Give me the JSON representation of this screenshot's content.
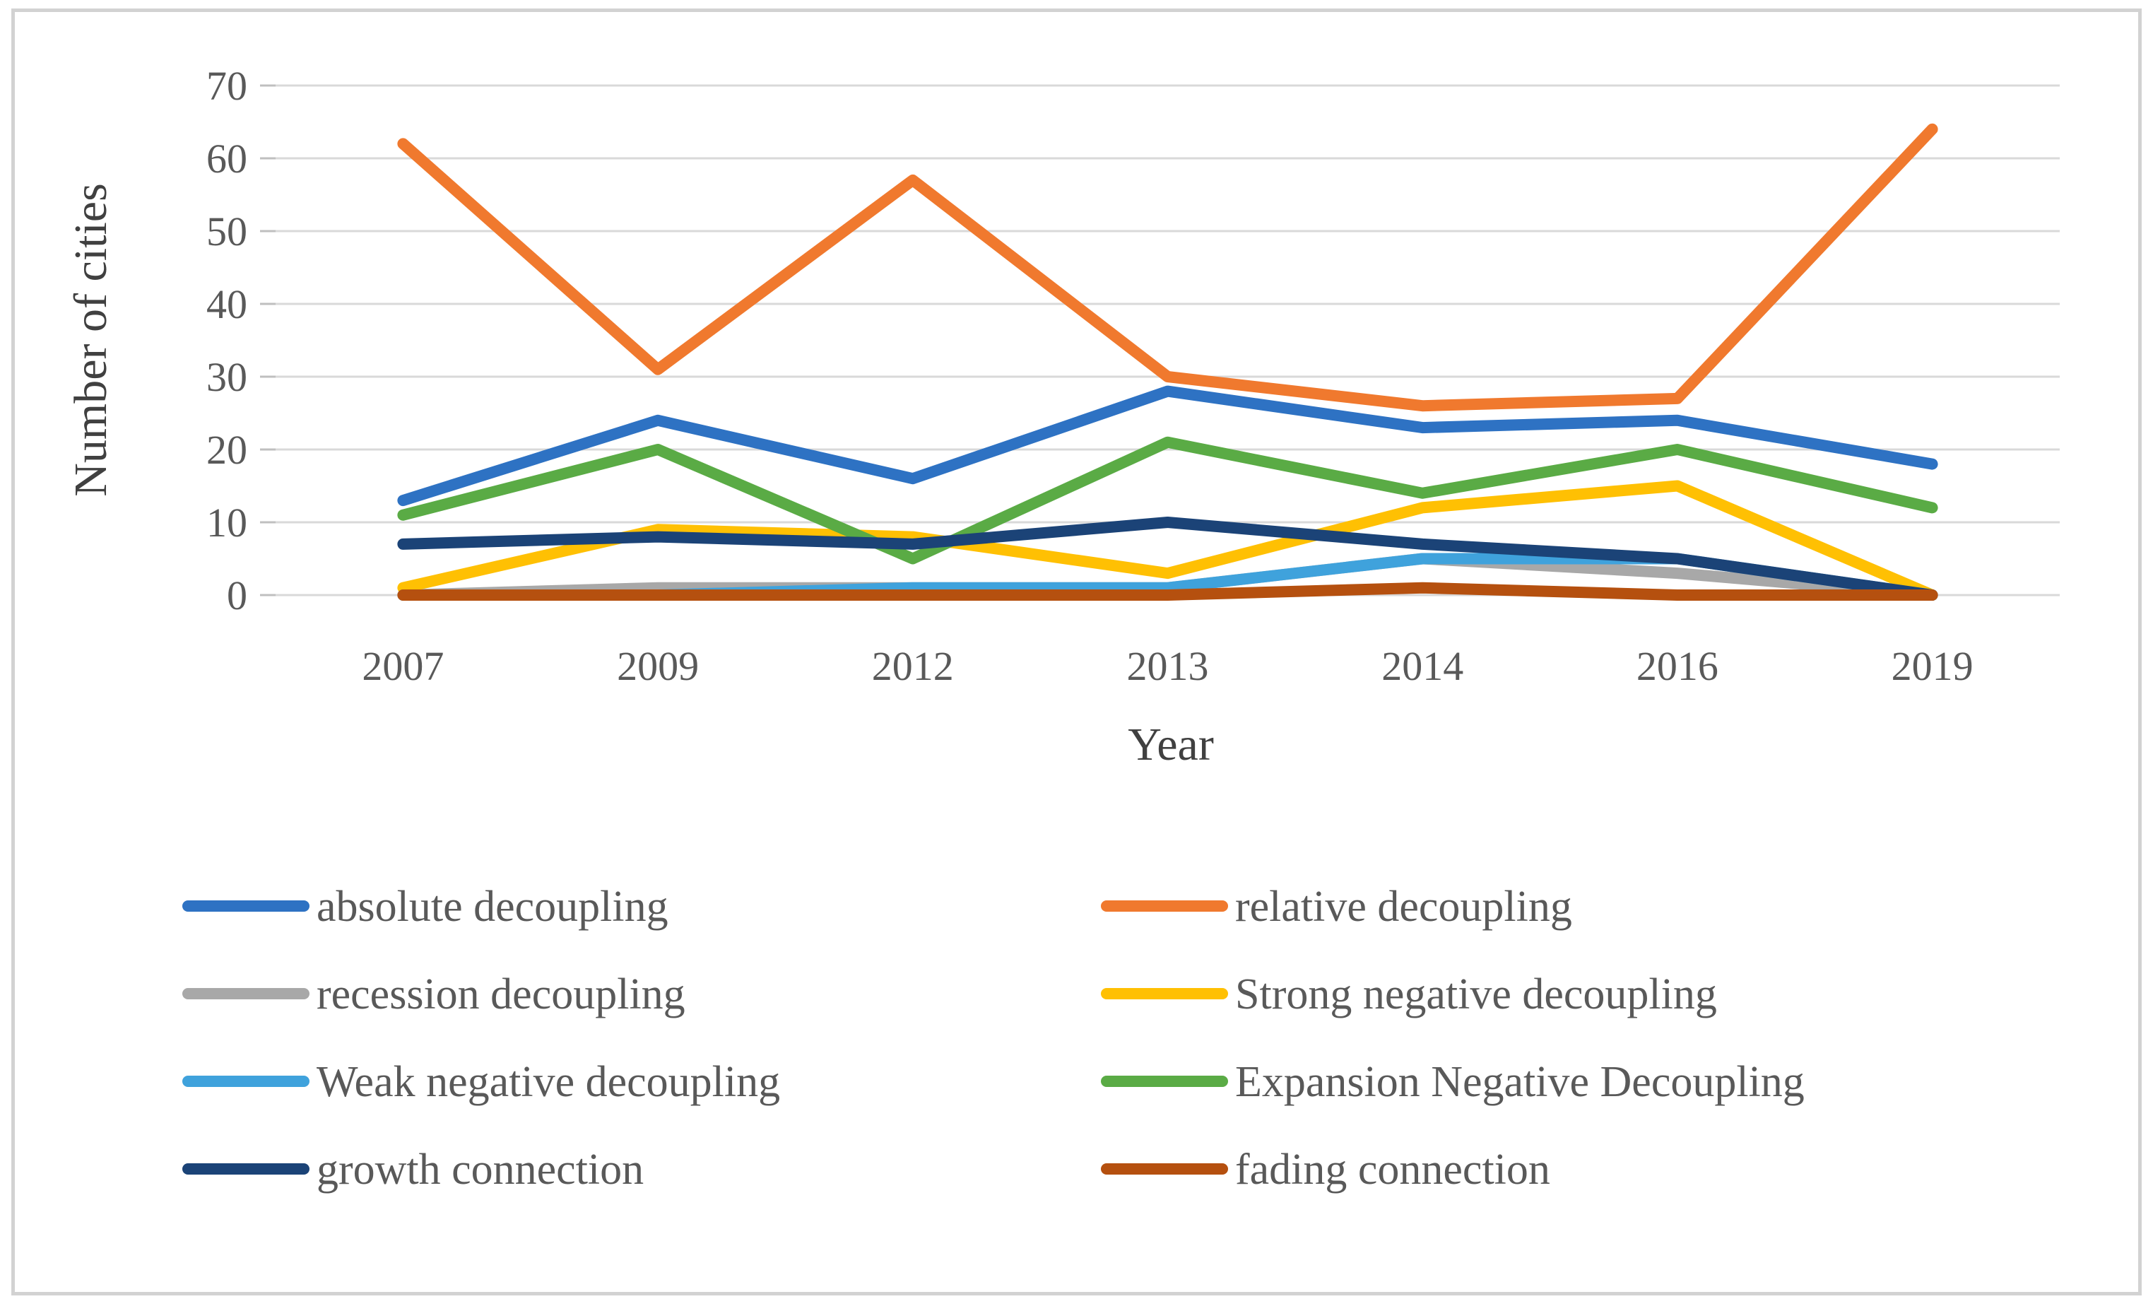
{
  "chart_data": {
    "type": "line",
    "title": "",
    "xlabel": "Year",
    "ylabel": "Number of cities",
    "categories": [
      "2007",
      "2009",
      "2012",
      "2013",
      "2014",
      "2016",
      "2019"
    ],
    "ylim": [
      0,
      70
    ],
    "yticks": [
      0,
      10,
      20,
      30,
      40,
      50,
      60,
      70
    ],
    "y_tick_labels": [
      "0",
      "10",
      "20",
      "30",
      "40",
      "50",
      "60",
      "70"
    ],
    "grid": "horizontal",
    "legend_position": "bottom, two columns, row-major order",
    "series": [
      {
        "name": "absolute decoupling",
        "color": "#2E72C3",
        "values": [
          13,
          24,
          16,
          28,
          23,
          24,
          18
        ]
      },
      {
        "name": "relative decoupling",
        "color": "#F0792E",
        "values": [
          62,
          31,
          57,
          30,
          26,
          27,
          64
        ]
      },
      {
        "name": "recession decoupling",
        "color": "#A8A8A8",
        "values": [
          0,
          1,
          1,
          1,
          5,
          3,
          0
        ]
      },
      {
        "name": "Strong negative decoupling",
        "color": "#FFC003",
        "values": [
          1,
          9,
          8,
          3,
          12,
          15,
          0
        ]
      },
      {
        "name": "Weak negative decoupling",
        "color": "#3FA2DC",
        "values": [
          0,
          0,
          1,
          1,
          5,
          5,
          0
        ]
      },
      {
        "name": "Expansion Negative Decoupling",
        "color": "#5AAB45",
        "values": [
          11,
          20,
          5,
          21,
          14,
          20,
          12
        ]
      },
      {
        "name": "growth connection",
        "color": "#1B4377",
        "values": [
          7,
          8,
          7,
          10,
          7,
          5,
          0
        ]
      },
      {
        "name": "fading connection",
        "color": "#B5500F",
        "values": [
          0,
          0,
          0,
          0,
          1,
          0,
          0
        ]
      }
    ]
  },
  "palette": {
    "gridline": "#D9D9D9",
    "tick_mark": "#BFBFBF",
    "tick_label_text": "#595959",
    "axis_title_text": "#404040",
    "legend_text": "#595959",
    "frame_border": "#D2D2D2",
    "background": "#FFFFFF"
  }
}
